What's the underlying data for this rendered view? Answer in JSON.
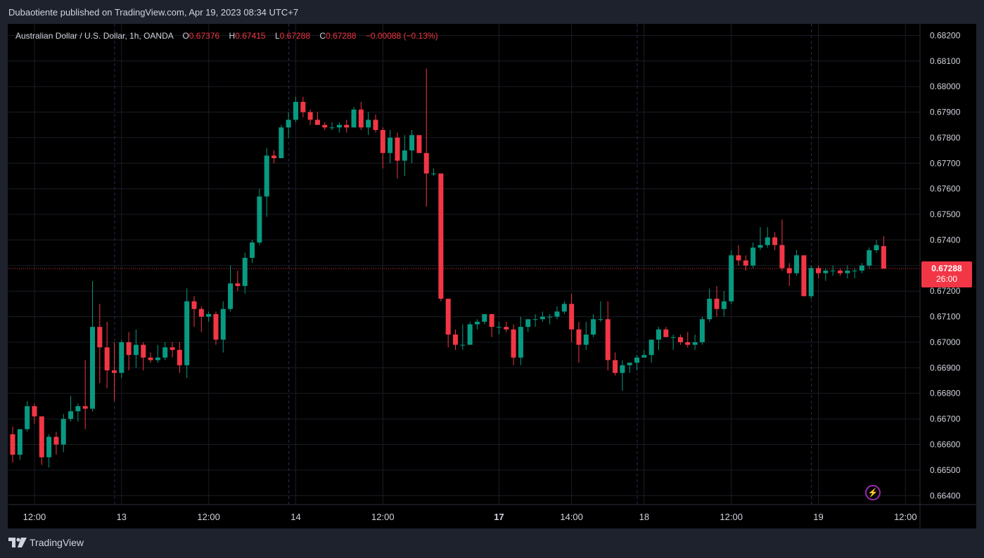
{
  "header": {
    "published_line": "Dubaotiente published on TradingView.com, Apr 19, 2023 08:34 UTC+7"
  },
  "legend": {
    "symbol": "Australian Dollar / U.S. Dollar, 1h, OANDA",
    "o_label": "O",
    "o_value": "0.67376",
    "h_label": "H",
    "h_value": "0.67415",
    "l_label": "L",
    "l_value": "0.67288",
    "c_label": "C",
    "c_value": "0.67288",
    "change": "−0.00088 (−0.13%)"
  },
  "price_badge": {
    "price": "0.67288",
    "countdown": "26:00"
  },
  "footer": {
    "brand": "TradingView"
  },
  "icons": {
    "lightning": "lightning-icon",
    "logo": "tradingview-logo-icon"
  },
  "colors": {
    "up": "#089981",
    "down": "#f23645",
    "background": "#000000",
    "frame": "#1e222d",
    "grid": "#1a1d26",
    "text": "#d1d4dc",
    "alert": "#9c27b0"
  },
  "chart_data": {
    "type": "candlestick",
    "title": "Australian Dollar / U.S. Dollar, 1h, OANDA",
    "current_price": 0.67288,
    "ylim": [
      0.66365,
      0.68245
    ],
    "y_ticks": [
      "0.68200",
      "0.68100",
      "0.68000",
      "0.67900",
      "0.67800",
      "0.67700",
      "0.67600",
      "0.67500",
      "0.67400",
      "0.67300",
      "0.67200",
      "0.67100",
      "0.67000",
      "0.66900",
      "0.66800",
      "0.66700",
      "0.66600",
      "0.66500",
      "0.66400"
    ],
    "x_ticks": [
      {
        "label": "12:00",
        "index": 3,
        "bold": false
      },
      {
        "label": "13",
        "index": 15,
        "bold": false
      },
      {
        "label": "12:00",
        "index": 27,
        "bold": false
      },
      {
        "label": "14",
        "index": 39,
        "bold": false
      },
      {
        "label": "12:00",
        "index": 51,
        "bold": false
      },
      {
        "label": "17",
        "index": 67,
        "bold": true
      },
      {
        "label": "14:00",
        "index": 77,
        "bold": false
      },
      {
        "label": "18",
        "index": 87,
        "bold": false
      },
      {
        "label": "12:00",
        "index": 99,
        "bold": false
      },
      {
        "label": "19",
        "index": 111,
        "bold": false
      },
      {
        "label": "12:00",
        "index": 123,
        "bold": false
      }
    ],
    "candles": [
      [
        0.6664,
        0.6667,
        0.6653,
        0.6656
      ],
      [
        0.6656,
        0.6666,
        0.6654,
        0.6666
      ],
      [
        0.6666,
        0.6677,
        0.6665,
        0.6675
      ],
      [
        0.6675,
        0.6676,
        0.6668,
        0.6671
      ],
      [
        0.6671,
        0.6671,
        0.6652,
        0.6655
      ],
      [
        0.6655,
        0.6664,
        0.6651,
        0.6663
      ],
      [
        0.6663,
        0.6665,
        0.6656,
        0.666
      ],
      [
        0.666,
        0.6672,
        0.6657,
        0.667
      ],
      [
        0.667,
        0.6679,
        0.6669,
        0.6673
      ],
      [
        0.6673,
        0.6676,
        0.6669,
        0.6675
      ],
      [
        0.6675,
        0.6693,
        0.6666,
        0.6674
      ],
      [
        0.6674,
        0.6724,
        0.6673,
        0.6706
      ],
      [
        0.6706,
        0.6715,
        0.6684,
        0.6698
      ],
      [
        0.6698,
        0.6708,
        0.6682,
        0.6689
      ],
      [
        0.6689,
        0.67,
        0.6677,
        0.6688
      ],
      [
        0.6688,
        0.6701,
        0.6686,
        0.67
      ],
      [
        0.67,
        0.6704,
        0.6689,
        0.6695
      ],
      [
        0.6695,
        0.6705,
        0.669,
        0.6699
      ],
      [
        0.6699,
        0.67,
        0.6689,
        0.6694
      ],
      [
        0.6694,
        0.6696,
        0.6692,
        0.6693
      ],
      [
        0.6693,
        0.6699,
        0.6692,
        0.6694
      ],
      [
        0.6694,
        0.67,
        0.6693,
        0.6698
      ],
      [
        0.6698,
        0.67,
        0.6694,
        0.6697
      ],
      [
        0.6697,
        0.67,
        0.6688,
        0.6691
      ],
      [
        0.6691,
        0.6721,
        0.6686,
        0.6716
      ],
      [
        0.6716,
        0.6718,
        0.6706,
        0.6713
      ],
      [
        0.6713,
        0.6714,
        0.6704,
        0.671
      ],
      [
        0.671,
        0.6712,
        0.6708,
        0.6711
      ],
      [
        0.6711,
        0.6712,
        0.6699,
        0.6701
      ],
      [
        0.6701,
        0.6716,
        0.6696,
        0.6713
      ],
      [
        0.6713,
        0.673,
        0.6712,
        0.6723
      ],
      [
        0.6723,
        0.6728,
        0.672,
        0.6722
      ],
      [
        0.6722,
        0.6735,
        0.6719,
        0.6733
      ],
      [
        0.6733,
        0.674,
        0.6731,
        0.6739
      ],
      [
        0.6739,
        0.676,
        0.6738,
        0.6757
      ],
      [
        0.6757,
        0.6776,
        0.6749,
        0.6773
      ],
      [
        0.6773,
        0.6775,
        0.677,
        0.6772
      ],
      [
        0.6772,
        0.6785,
        0.6772,
        0.6784
      ],
      [
        0.6784,
        0.679,
        0.678,
        0.6787
      ],
      [
        0.6787,
        0.6796,
        0.6786,
        0.6794
      ],
      [
        0.6794,
        0.6796,
        0.6788,
        0.679
      ],
      [
        0.679,
        0.6791,
        0.6785,
        0.6787
      ],
      [
        0.6787,
        0.679,
        0.6785,
        0.6785
      ],
      [
        0.6785,
        0.6786,
        0.6783,
        0.6784
      ],
      [
        0.6784,
        0.6786,
        0.6783,
        0.6784
      ],
      [
        0.6784,
        0.6786,
        0.6782,
        0.6785
      ],
      [
        0.6785,
        0.6787,
        0.6782,
        0.6784
      ],
      [
        0.6784,
        0.6792,
        0.6784,
        0.6791
      ],
      [
        0.6791,
        0.6794,
        0.6783,
        0.6784
      ],
      [
        0.6784,
        0.679,
        0.6781,
        0.6787
      ],
      [
        0.6787,
        0.6789,
        0.6782,
        0.6783
      ],
      [
        0.6783,
        0.6784,
        0.6768,
        0.6774
      ],
      [
        0.6774,
        0.6783,
        0.677,
        0.678
      ],
      [
        0.678,
        0.6782,
        0.6764,
        0.6771
      ],
      [
        0.6771,
        0.6781,
        0.6765,
        0.6775
      ],
      [
        0.6775,
        0.6783,
        0.677,
        0.6781
      ],
      [
        0.6781,
        0.6781,
        0.6774,
        0.6774
      ],
      [
        0.6774,
        0.6807,
        0.6753,
        0.6766
      ],
      [
        0.6766,
        0.6768,
        0.6765,
        0.6766
      ],
      [
        0.6766,
        0.6766,
        0.6716,
        0.6717
      ],
      [
        0.6717,
        0.6717,
        0.6698,
        0.6703
      ],
      [
        0.6703,
        0.6705,
        0.6697,
        0.6699
      ],
      [
        0.6699,
        0.6707,
        0.6697,
        0.6699
      ],
      [
        0.6699,
        0.6708,
        0.6699,
        0.6707
      ],
      [
        0.6707,
        0.6709,
        0.6705,
        0.6708
      ],
      [
        0.6708,
        0.6711,
        0.6707,
        0.6711
      ],
      [
        0.6711,
        0.6711,
        0.6702,
        0.6706
      ],
      [
        0.6706,
        0.6708,
        0.6703,
        0.6706
      ],
      [
        0.6706,
        0.6708,
        0.6704,
        0.6705
      ],
      [
        0.6705,
        0.6707,
        0.6691,
        0.6694
      ],
      [
        0.6694,
        0.671,
        0.6691,
        0.6706
      ],
      [
        0.6706,
        0.6708,
        0.6704,
        0.6709
      ],
      [
        0.6709,
        0.6711,
        0.6706,
        0.6709
      ],
      [
        0.6709,
        0.6712,
        0.6708,
        0.671
      ],
      [
        0.671,
        0.6711,
        0.6707,
        0.671
      ],
      [
        0.671,
        0.6714,
        0.6709,
        0.6712
      ],
      [
        0.6712,
        0.6716,
        0.6711,
        0.6715
      ],
      [
        0.6715,
        0.6719,
        0.67,
        0.6705
      ],
      [
        0.6705,
        0.6708,
        0.6692,
        0.6699
      ],
      [
        0.6699,
        0.6708,
        0.6697,
        0.6703
      ],
      [
        0.6703,
        0.6711,
        0.6702,
        0.6709
      ],
      [
        0.6709,
        0.6716,
        0.6708,
        0.6709
      ],
      [
        0.6709,
        0.6716,
        0.6689,
        0.6693
      ],
      [
        0.6693,
        0.6696,
        0.6687,
        0.6688
      ],
      [
        0.6688,
        0.6693,
        0.6681,
        0.6691
      ],
      [
        0.6691,
        0.6692,
        0.6688,
        0.6692
      ],
      [
        0.6692,
        0.6695,
        0.6689,
        0.6694
      ],
      [
        0.6694,
        0.6697,
        0.6694,
        0.6695
      ],
      [
        0.6695,
        0.6701,
        0.6692,
        0.6701
      ],
      [
        0.6701,
        0.6706,
        0.6697,
        0.6705
      ],
      [
        0.6705,
        0.6706,
        0.6702,
        0.6702
      ],
      [
        0.6702,
        0.6703,
        0.6697,
        0.6702
      ],
      [
        0.6702,
        0.6703,
        0.6699,
        0.67
      ],
      [
        0.67,
        0.6704,
        0.6698,
        0.6699
      ],
      [
        0.6699,
        0.6703,
        0.6697,
        0.67
      ],
      [
        0.67,
        0.671,
        0.6699,
        0.6709
      ],
      [
        0.6709,
        0.6721,
        0.6708,
        0.6717
      ],
      [
        0.6717,
        0.6722,
        0.671,
        0.6713
      ],
      [
        0.6713,
        0.672,
        0.671,
        0.6716
      ],
      [
        0.6716,
        0.6736,
        0.6715,
        0.6734
      ],
      [
        0.6734,
        0.6738,
        0.673,
        0.6732
      ],
      [
        0.6732,
        0.6734,
        0.6728,
        0.673
      ],
      [
        0.673,
        0.6739,
        0.6729,
        0.6737
      ],
      [
        0.6737,
        0.6745,
        0.6736,
        0.6738
      ],
      [
        0.6738,
        0.6745,
        0.6737,
        0.6741
      ],
      [
        0.6741,
        0.6743,
        0.6736,
        0.6738
      ],
      [
        0.6738,
        0.6748,
        0.6728,
        0.6729
      ],
      [
        0.6729,
        0.6731,
        0.6722,
        0.6727
      ],
      [
        0.6727,
        0.6736,
        0.6726,
        0.6734
      ],
      [
        0.6734,
        0.6734,
        0.6718,
        0.6718
      ],
      [
        0.6718,
        0.673,
        0.6717,
        0.6729
      ],
      [
        0.6729,
        0.673,
        0.6725,
        0.6727
      ],
      [
        0.6727,
        0.6729,
        0.6724,
        0.6728
      ],
      [
        0.6728,
        0.673,
        0.6726,
        0.6728
      ],
      [
        0.6728,
        0.6729,
        0.6726,
        0.6727
      ],
      [
        0.6727,
        0.673,
        0.6725,
        0.6728
      ],
      [
        0.6728,
        0.6729,
        0.6725,
        0.6728
      ],
      [
        0.6728,
        0.6731,
        0.6727,
        0.673
      ],
      [
        0.673,
        0.6737,
        0.6729,
        0.6736
      ],
      [
        0.6736,
        0.674,
        0.6735,
        0.6738
      ],
      [
        0.67376,
        0.67415,
        0.67288,
        0.67288
      ]
    ]
  }
}
